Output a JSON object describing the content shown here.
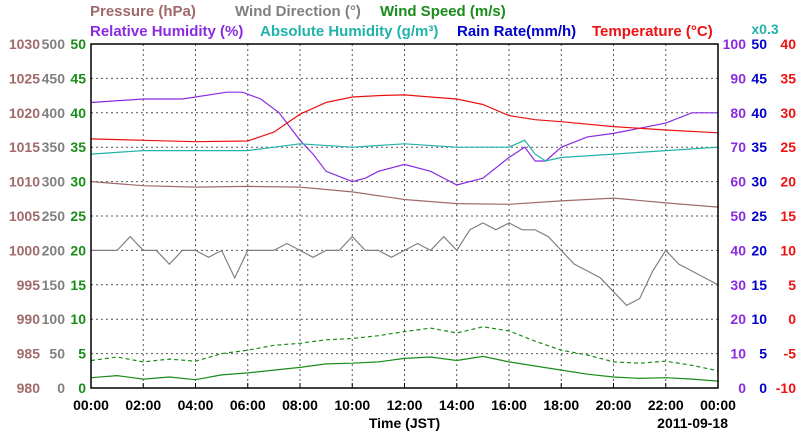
{
  "chart_data": {
    "type": "line",
    "date": "2011-09-18",
    "xlabel": "Time (JST)",
    "x_ticks": [
      "00:00",
      "02:00",
      "04:00",
      "06:00",
      "08:00",
      "10:00",
      "12:00",
      "14:00",
      "16:00",
      "18:00",
      "20:00",
      "22:00",
      "00:00"
    ],
    "xlim_hours": [
      0,
      24
    ],
    "grid": true,
    "legend": {
      "row1": [
        {
          "key": "pressure",
          "label": "Pressure (hPa)",
          "color": "#a06a6a"
        },
        {
          "key": "wind_dir",
          "label": "Wind Direction (°)",
          "color": "#808080"
        },
        {
          "key": "wind_speed",
          "label": "Wind Speed (m/s)",
          "color": "#1a8c1a"
        }
      ],
      "row2": [
        {
          "key": "rh",
          "label": "Relative Humidity (%)",
          "color": "#8a2be2"
        },
        {
          "key": "ah",
          "label": "Absolute Humidity (g/m³)",
          "color": "#20b2aa"
        },
        {
          "key": "rain",
          "label": "Rain Rate(mm/h)",
          "color": "#0000cc"
        },
        {
          "key": "temp",
          "label": "Temperature (°C)",
          "color": "#ee1111"
        }
      ],
      "ah_scale_note": "x0.3"
    },
    "axes": {
      "pressure": {
        "range": [
          980,
          1030
        ],
        "ticks": [
          "980",
          "985",
          "990",
          "995",
          "1000",
          "1005",
          "1010",
          "1015",
          "1020",
          "1025",
          "1030"
        ],
        "color": "#a06a6a"
      },
      "wind_dir": {
        "range": [
          0,
          500
        ],
        "ticks": [
          "0",
          "50",
          "100",
          "150",
          "200",
          "250",
          "300",
          "350",
          "400",
          "450",
          "500"
        ],
        "color": "#808080"
      },
      "wind_speed": {
        "range": [
          0,
          50
        ],
        "ticks": [
          "0",
          "5",
          "10",
          "15",
          "20",
          "25",
          "30",
          "35",
          "40",
          "45",
          "50"
        ],
        "color": "#1a8c1a"
      },
      "rh": {
        "range": [
          0,
          100
        ],
        "ticks": [
          "0",
          "10",
          "20",
          "30",
          "40",
          "50",
          "60",
          "70",
          "80",
          "90",
          "100"
        ],
        "color": "#8a2be2"
      },
      "rain": {
        "range": [
          0,
          50
        ],
        "ticks": [
          "0",
          "5",
          "10",
          "15",
          "20",
          "25",
          "30",
          "35",
          "40",
          "45",
          "50"
        ],
        "color": "#0000cc"
      },
      "temp": {
        "range": [
          -10,
          40
        ],
        "ticks": [
          "-10",
          "-5",
          "0",
          "5",
          "10",
          "15",
          "20",
          "25",
          "30",
          "35",
          "40"
        ],
        "color": "#ee1111"
      }
    },
    "series": [
      {
        "name": "Pressure (hPa)",
        "key": "pressure",
        "axis": "pressure",
        "style": "solid",
        "x": [
          0,
          2,
          4,
          6,
          8,
          10,
          12,
          14,
          16,
          18,
          20,
          22,
          24
        ],
        "y": [
          1010,
          1009.4,
          1009.2,
          1009.3,
          1009.2,
          1008.5,
          1007.4,
          1006.8,
          1006.7,
          1007.2,
          1007.6,
          1006.9,
          1006.3
        ]
      },
      {
        "name": "Wind Direction (°)",
        "key": "wind_dir",
        "axis": "wind_dir",
        "style": "solid",
        "x": [
          0,
          0.5,
          1,
          1.5,
          2,
          2.5,
          3,
          3.5,
          4,
          4.5,
          5,
          5.5,
          6,
          6.5,
          7,
          7.5,
          8,
          8.5,
          9,
          9.5,
          10,
          10.5,
          11,
          11.5,
          12,
          12.5,
          13,
          13.5,
          14,
          14.5,
          15,
          15.5,
          16,
          16.5,
          17,
          17.5,
          18,
          18.5,
          19,
          19.5,
          20,
          20.5,
          21,
          21.5,
          22,
          22.5,
          23,
          23.5,
          24
        ],
        "y": [
          200,
          200,
          200,
          220,
          200,
          200,
          180,
          200,
          200,
          190,
          200,
          160,
          200,
          200,
          200,
          210,
          200,
          190,
          200,
          200,
          220,
          200,
          200,
          190,
          200,
          210,
          200,
          220,
          200,
          230,
          240,
          230,
          240,
          230,
          230,
          220,
          200,
          180,
          170,
          160,
          140,
          120,
          130,
          170,
          200,
          180,
          170,
          160,
          150
        ]
      },
      {
        "name": "Wind Speed (m/s) mean",
        "key": "wind_speed",
        "axis": "wind_speed",
        "style": "solid",
        "x": [
          0,
          1,
          2,
          3,
          4,
          5,
          6,
          7,
          8,
          9,
          10,
          11,
          12,
          13,
          14,
          15,
          16,
          17,
          18,
          19,
          20,
          21,
          22,
          23,
          24
        ],
        "y": [
          1.5,
          1.8,
          1.3,
          1.6,
          1.2,
          1.9,
          2.2,
          2.6,
          3.0,
          3.5,
          3.6,
          3.8,
          4.3,
          4.5,
          4.0,
          4.6,
          3.8,
          3.2,
          2.6,
          2.0,
          1.6,
          1.4,
          1.5,
          1.3,
          1.0
        ]
      },
      {
        "name": "Wind Speed (m/s) gust",
        "key": "wind_speed",
        "axis": "wind_speed",
        "style": "dashed",
        "x": [
          0,
          1,
          2,
          3,
          4,
          5,
          6,
          7,
          8,
          9,
          10,
          11,
          12,
          13,
          14,
          15,
          16,
          17,
          18,
          19,
          20,
          21,
          22,
          23,
          24
        ],
        "y": [
          4.0,
          4.5,
          3.8,
          4.2,
          3.9,
          5.0,
          5.5,
          6.2,
          6.5,
          7.0,
          7.2,
          7.6,
          8.2,
          8.7,
          8.0,
          8.9,
          8.3,
          6.8,
          5.5,
          4.8,
          3.8,
          3.6,
          3.9,
          3.3,
          2.5
        ]
      },
      {
        "name": "Relative Humidity (%)",
        "key": "rh",
        "axis": "rh",
        "style": "solid",
        "x": [
          0,
          2,
          3.5,
          5.2,
          5.8,
          6.5,
          7.2,
          8,
          8.5,
          9,
          10,
          10.5,
          11,
          12,
          13,
          14,
          15,
          16,
          16.6,
          17,
          17.4,
          18,
          19,
          20,
          22,
          23,
          24
        ],
        "y": [
          83,
          84,
          84,
          86,
          86,
          84,
          80,
          72,
          68,
          63,
          60,
          61,
          63,
          65,
          63,
          59,
          61,
          67,
          70,
          66,
          66,
          70,
          73,
          74,
          77,
          80,
          80
        ]
      },
      {
        "name": "Absolute Humidity (g/m³)",
        "key": "ah",
        "axis": "rh",
        "style": "solid",
        "x": [
          0,
          2,
          4,
          6,
          7,
          8,
          10,
          12,
          14,
          16,
          16.6,
          17,
          17.4,
          18,
          20,
          22,
          24
        ],
        "y": [
          68,
          69,
          69,
          69,
          70,
          71,
          70,
          71,
          70,
          70,
          72,
          68,
          66,
          67,
          68,
          69,
          70
        ]
      },
      {
        "name": "Temperature (°C)",
        "key": "temp",
        "axis": "temp",
        "style": "solid",
        "x": [
          0,
          2,
          4,
          6,
          7,
          8,
          9,
          10,
          11,
          12,
          13,
          14,
          15,
          16,
          17,
          18,
          20,
          22,
          24
        ],
        "y": [
          26.2,
          26.0,
          25.8,
          25.9,
          27.2,
          29.8,
          31.5,
          32.3,
          32.5,
          32.6,
          32.3,
          32.0,
          31.2,
          29.6,
          29.0,
          28.7,
          28.0,
          27.5,
          27.1
        ]
      }
    ]
  }
}
